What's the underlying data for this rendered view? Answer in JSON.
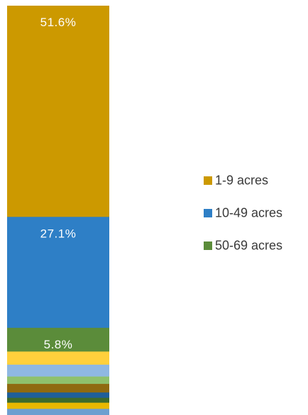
{
  "chart_data": {
    "type": "bar",
    "stacked": true,
    "title": "",
    "xlabel": "",
    "ylabel": "",
    "ylim": [
      0,
      100
    ],
    "series": [
      {
        "name": "1-9 acres",
        "values": [
          51.6
        ],
        "label": "51.6%",
        "color": "#CC9900"
      },
      {
        "name": "10-49 acres",
        "values": [
          27.1
        ],
        "label": "27.1%",
        "color": "#2E7FC6"
      },
      {
        "name": "50-69 acres",
        "values": [
          5.8
        ],
        "label": "5.8%",
        "color": "#5B8C3A"
      },
      {
        "values": [
          3.2
        ],
        "color": "#FFD03C"
      },
      {
        "values": [
          2.9
        ],
        "color": "#8FB8E2"
      },
      {
        "values": [
          1.8
        ],
        "color": "#8FC16C"
      },
      {
        "values": [
          2.1
        ],
        "color": "#8F6A10"
      },
      {
        "values": [
          1.3
        ],
        "color": "#1F5F9A"
      },
      {
        "values": [
          1.2
        ],
        "color": "#3E6B2A"
      },
      {
        "values": [
          1.5
        ],
        "color": "#E8B800"
      },
      {
        "values": [
          1.5
        ],
        "color": "#6E9FD0"
      }
    ],
    "legend": {
      "position": "right",
      "entries": [
        "1-9 acres",
        "10-49 acres",
        "50-69 acres"
      ]
    }
  }
}
